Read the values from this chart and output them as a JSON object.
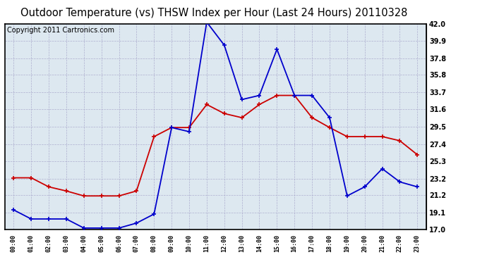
{
  "title": "Outdoor Temperature (vs) THSW Index per Hour (Last 24 Hours) 20110328",
  "copyright": "Copyright 2011 Cartronics.com",
  "x_labels": [
    "00:00",
    "01:00",
    "02:00",
    "03:00",
    "04:00",
    "05:00",
    "06:00",
    "07:00",
    "08:00",
    "09:00",
    "10:00",
    "11:00",
    "12:00",
    "13:00",
    "14:00",
    "15:00",
    "16:00",
    "17:00",
    "18:00",
    "19:00",
    "20:00",
    "21:00",
    "22:00",
    "23:00"
  ],
  "temp_data": [
    23.3,
    23.3,
    22.2,
    21.7,
    21.1,
    21.1,
    21.1,
    21.7,
    28.3,
    29.4,
    29.4,
    32.2,
    31.1,
    30.6,
    32.2,
    33.3,
    33.3,
    30.6,
    29.4,
    28.3,
    28.3,
    28.3,
    27.8,
    26.1
  ],
  "thsw_data": [
    19.4,
    18.3,
    18.3,
    18.3,
    17.2,
    17.2,
    17.2,
    17.8,
    18.9,
    29.4,
    28.9,
    42.2,
    39.4,
    32.8,
    33.3,
    38.9,
    33.3,
    33.3,
    30.6,
    21.1,
    22.2,
    24.4,
    22.8,
    22.2
  ],
  "temp_color": "#cc0000",
  "thsw_color": "#0000cc",
  "ylim": [
    17.0,
    42.0
  ],
  "yticks_right": [
    17.0,
    19.1,
    21.2,
    23.2,
    25.3,
    27.4,
    29.5,
    31.6,
    33.7,
    35.8,
    37.8,
    39.9,
    42.0
  ],
  "bg_color": "#ffffff",
  "plot_bg_color": "#dde8f0",
  "grid_color": "#aaaacc",
  "title_fontsize": 10.5,
  "copyright_fontsize": 7
}
